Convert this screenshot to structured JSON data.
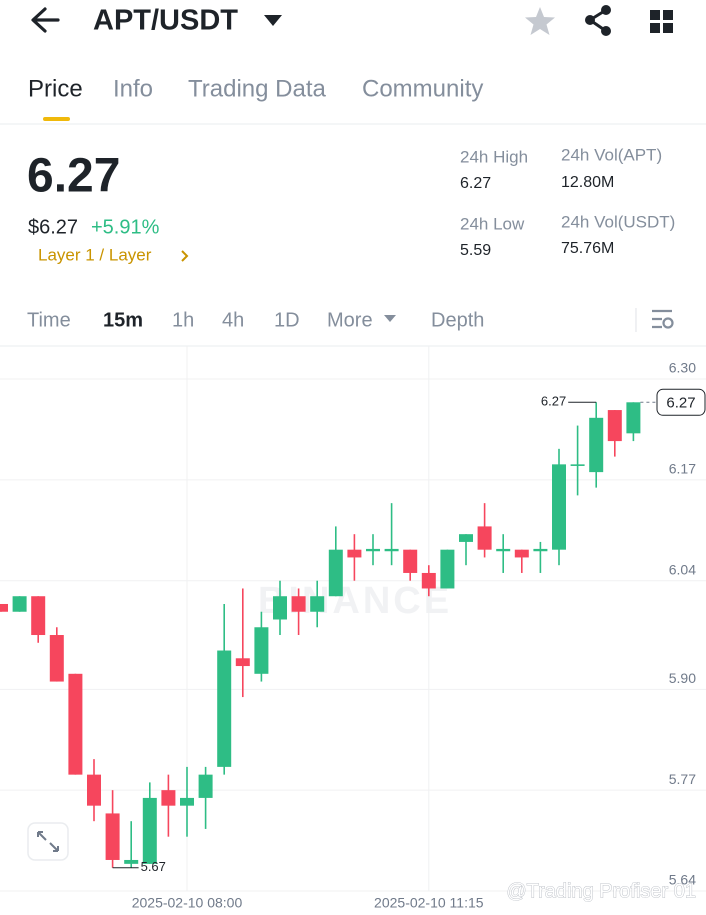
{
  "header": {
    "title": "APT/USDT"
  },
  "tabs": [
    "Price",
    "Info",
    "Trading Data",
    "Community"
  ],
  "active_tab": "Price",
  "price": {
    "last": "6.27",
    "fiat": "$6.27",
    "change": "+5.91%",
    "tag": "Layer 1 / Layer",
    "stats": [
      {
        "label": "24h High",
        "value": "6.27"
      },
      {
        "label": "24h Vol(APT)",
        "value": "12.80M"
      },
      {
        "label": "24h Low",
        "value": "5.59"
      },
      {
        "label": "24h Vol(USDT)",
        "value": "75.76M"
      }
    ]
  },
  "intervals": [
    "Time",
    "15m",
    "1h",
    "4h",
    "1D",
    "More",
    "Depth"
  ],
  "active_interval": "15m",
  "chart_data": {
    "type": "candlestick",
    "categories": [
      null,
      null,
      null,
      null,
      null,
      null,
      null,
      null,
      null,
      null,
      "2025-02-10 08:00",
      null,
      null,
      null,
      null,
      null,
      null,
      null,
      null,
      null,
      null,
      null,
      null,
      "2025-02-10 11:15",
      null,
      null,
      null,
      null,
      null,
      null,
      null,
      null,
      null,
      null,
      null
    ],
    "open": [
      6.01,
      6.0,
      6.02,
      5.97,
      5.92,
      5.79,
      5.74,
      5.675,
      5.675,
      5.77,
      5.75,
      5.76,
      5.8,
      5.94,
      5.92,
      5.99,
      6.02,
      6.0,
      6.02,
      6.08,
      6.078,
      6.078,
      6.08,
      6.05,
      6.03,
      6.09,
      6.11,
      6.078,
      6.08,
      6.078,
      6.08,
      6.188,
      6.18,
      6.26,
      6.23
    ],
    "high": [
      6.01,
      6.02,
      6.02,
      5.98,
      5.92,
      5.81,
      5.77,
      5.73,
      5.78,
      5.79,
      5.8,
      5.8,
      6.01,
      6.03,
      6.0,
      6.04,
      6.03,
      6.04,
      6.11,
      6.1,
      6.1,
      6.14,
      6.08,
      6.06,
      6.08,
      6.1,
      6.14,
      6.1,
      6.08,
      6.09,
      6.21,
      6.24,
      6.27,
      6.26,
      6.27
    ],
    "low": [
      6.0,
      6.0,
      5.96,
      5.91,
      5.79,
      5.73,
      5.67,
      5.67,
      5.675,
      5.71,
      5.71,
      5.72,
      5.79,
      5.89,
      5.91,
      5.97,
      5.97,
      5.98,
      6.02,
      6.04,
      6.06,
      6.06,
      6.04,
      6.02,
      6.03,
      6.06,
      6.07,
      6.05,
      6.05,
      6.05,
      6.06,
      6.15,
      6.16,
      6.2,
      6.22
    ],
    "close": [
      6.0,
      6.02,
      5.97,
      5.91,
      5.79,
      5.75,
      5.68,
      5.68,
      5.76,
      5.75,
      5.76,
      5.79,
      5.95,
      5.93,
      5.98,
      6.02,
      6.0,
      6.02,
      6.08,
      6.07,
      6.081,
      6.081,
      6.05,
      6.03,
      6.08,
      6.1,
      6.08,
      6.081,
      6.07,
      6.081,
      6.19,
      6.19,
      6.25,
      6.22,
      6.27
    ],
    "up_color": "#2ebd85",
    "down_color": "#f6465d",
    "ylim": [
      5.64,
      6.34
    ],
    "yticks": [
      {
        "value": 6.3,
        "label": "6.30"
      },
      6.17,
      6.04,
      {
        "value": 5.9,
        "label": "5.90"
      },
      5.77,
      5.64
    ],
    "grid": true,
    "high_marker": 6.27,
    "low_marker": 5.67,
    "last_price": 6.27
  },
  "watermarks": [
    "BINANCE",
    "@Trading Profiser 01"
  ]
}
